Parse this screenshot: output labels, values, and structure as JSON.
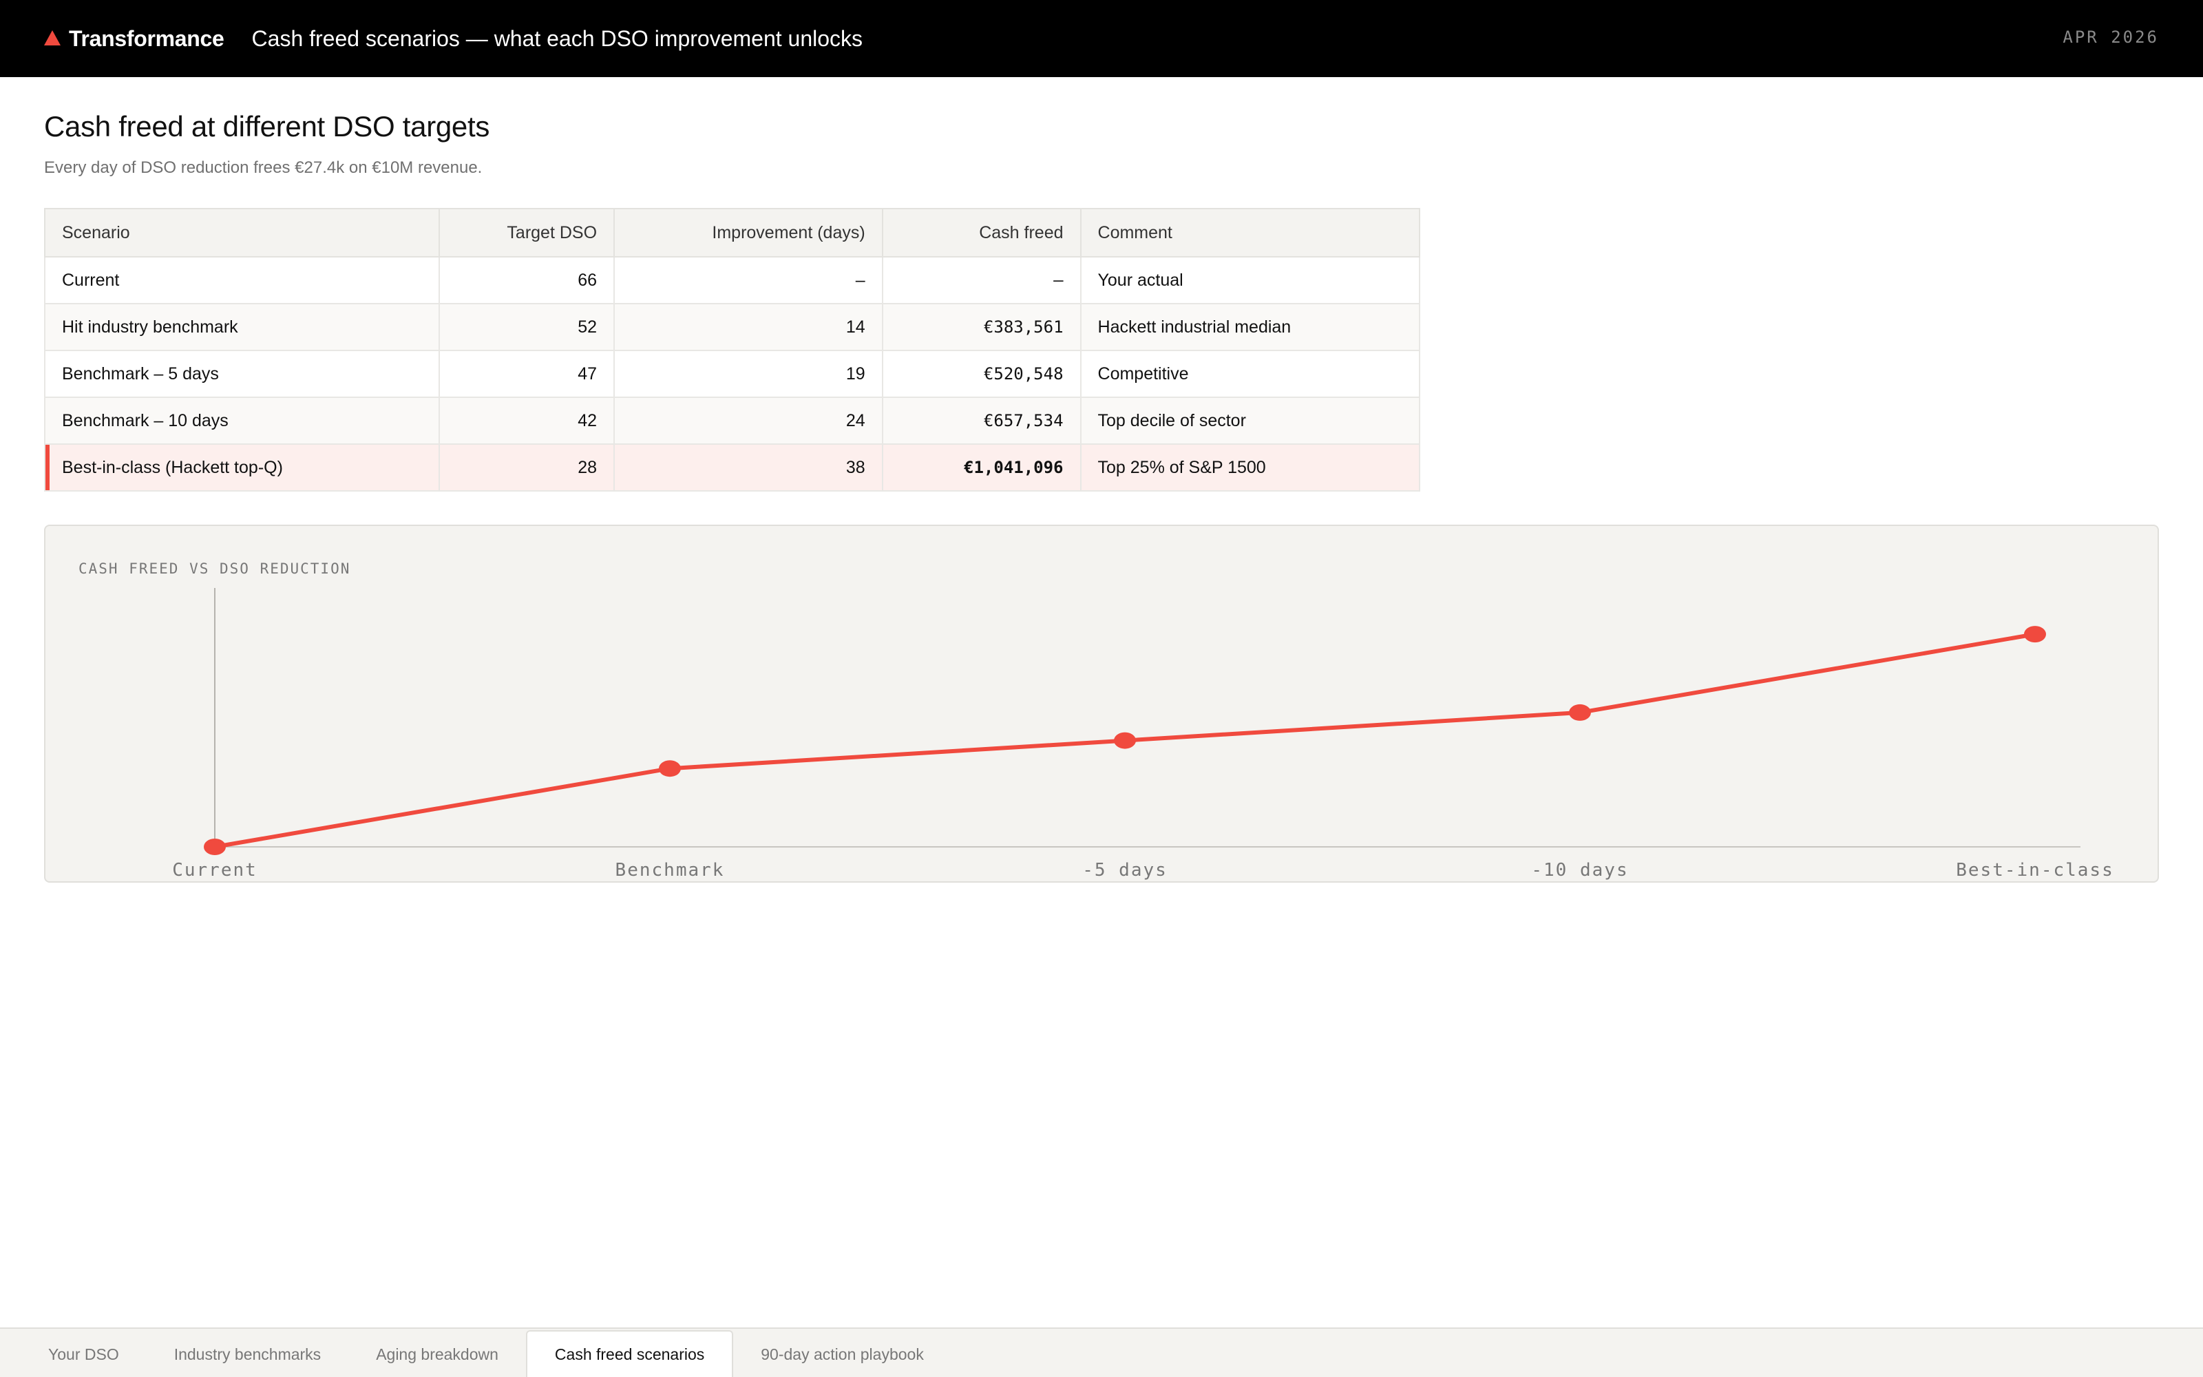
{
  "header": {
    "brand": "Transformance",
    "title": "Cash freed scenarios — what each DSO improvement unlocks",
    "date": "APR 2026"
  },
  "section": {
    "title": "Cash freed at different DSO targets",
    "subtitle": "Every day of DSO reduction frees €27.4k on €10M revenue."
  },
  "table": {
    "columns": [
      "Scenario",
      "Target DSO",
      "Improvement (days)",
      "Cash freed",
      "Comment"
    ],
    "rows": [
      {
        "scenario": "Current",
        "target": "66",
        "improvement": "–",
        "cash": "–",
        "comment": "Your actual"
      },
      {
        "scenario": "Hit industry benchmark",
        "target": "52",
        "improvement": "14",
        "cash": "€383,561",
        "comment": "Hackett industrial median"
      },
      {
        "scenario": "Benchmark – 5 days",
        "target": "47",
        "improvement": "19",
        "cash": "€520,548",
        "comment": "Competitive"
      },
      {
        "scenario": "Benchmark – 10 days",
        "target": "42",
        "improvement": "24",
        "cash": "€657,534",
        "comment": "Top decile of sector"
      },
      {
        "scenario": "Best-in-class (Hackett top-Q)",
        "target": "28",
        "improvement": "38",
        "cash": "€1,041,096",
        "comment": "Top 25% of S&P 1500"
      }
    ]
  },
  "chart_data": {
    "type": "line",
    "title": "CASH FREED VS DSO REDUCTION",
    "categories": [
      "Current",
      "Benchmark",
      "-5 days",
      "-10 days",
      "Best-in-class"
    ],
    "series": [
      {
        "values": [
          0,
          383561,
          520548,
          657534,
          1041096
        ],
        "color": "#f04a3e"
      }
    ],
    "ylim": [
      0,
      1200000
    ],
    "grid": false
  },
  "tabs": [
    {
      "label": "Your DSO",
      "active": false
    },
    {
      "label": "Industry benchmarks",
      "active": false
    },
    {
      "label": "Aging breakdown",
      "active": false
    },
    {
      "label": "Cash freed scenarios",
      "active": true
    },
    {
      "label": "90-day action playbook",
      "active": false
    }
  ]
}
